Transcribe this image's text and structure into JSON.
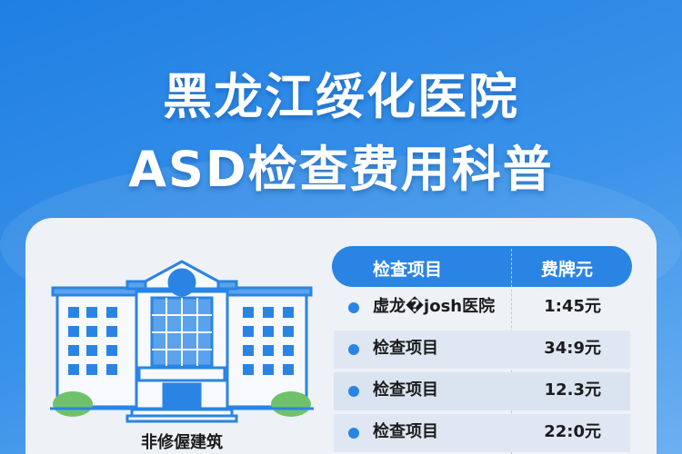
{
  "title": {
    "line1": "黑龙江绥化医院",
    "line2": "ASD检查费用科普"
  },
  "illustration": {
    "icon": "hospital-building-icon",
    "caption": "非修偓建筑"
  },
  "table": {
    "headers": [
      "检查项目",
      "费牌元"
    ],
    "rows": [
      {
        "name": "虚龙�josh医院",
        "price": "1:45元"
      },
      {
        "name": "检查项目",
        "price": "34:9元"
      },
      {
        "name": "检查项目",
        "price": "12.3元"
      },
      {
        "name": "检查项目",
        "price": "22:0元"
      }
    ]
  },
  "colors": {
    "accent": "#2a84e4",
    "card": "#eef1f5",
    "row_alt": "#dfe8f2"
  }
}
